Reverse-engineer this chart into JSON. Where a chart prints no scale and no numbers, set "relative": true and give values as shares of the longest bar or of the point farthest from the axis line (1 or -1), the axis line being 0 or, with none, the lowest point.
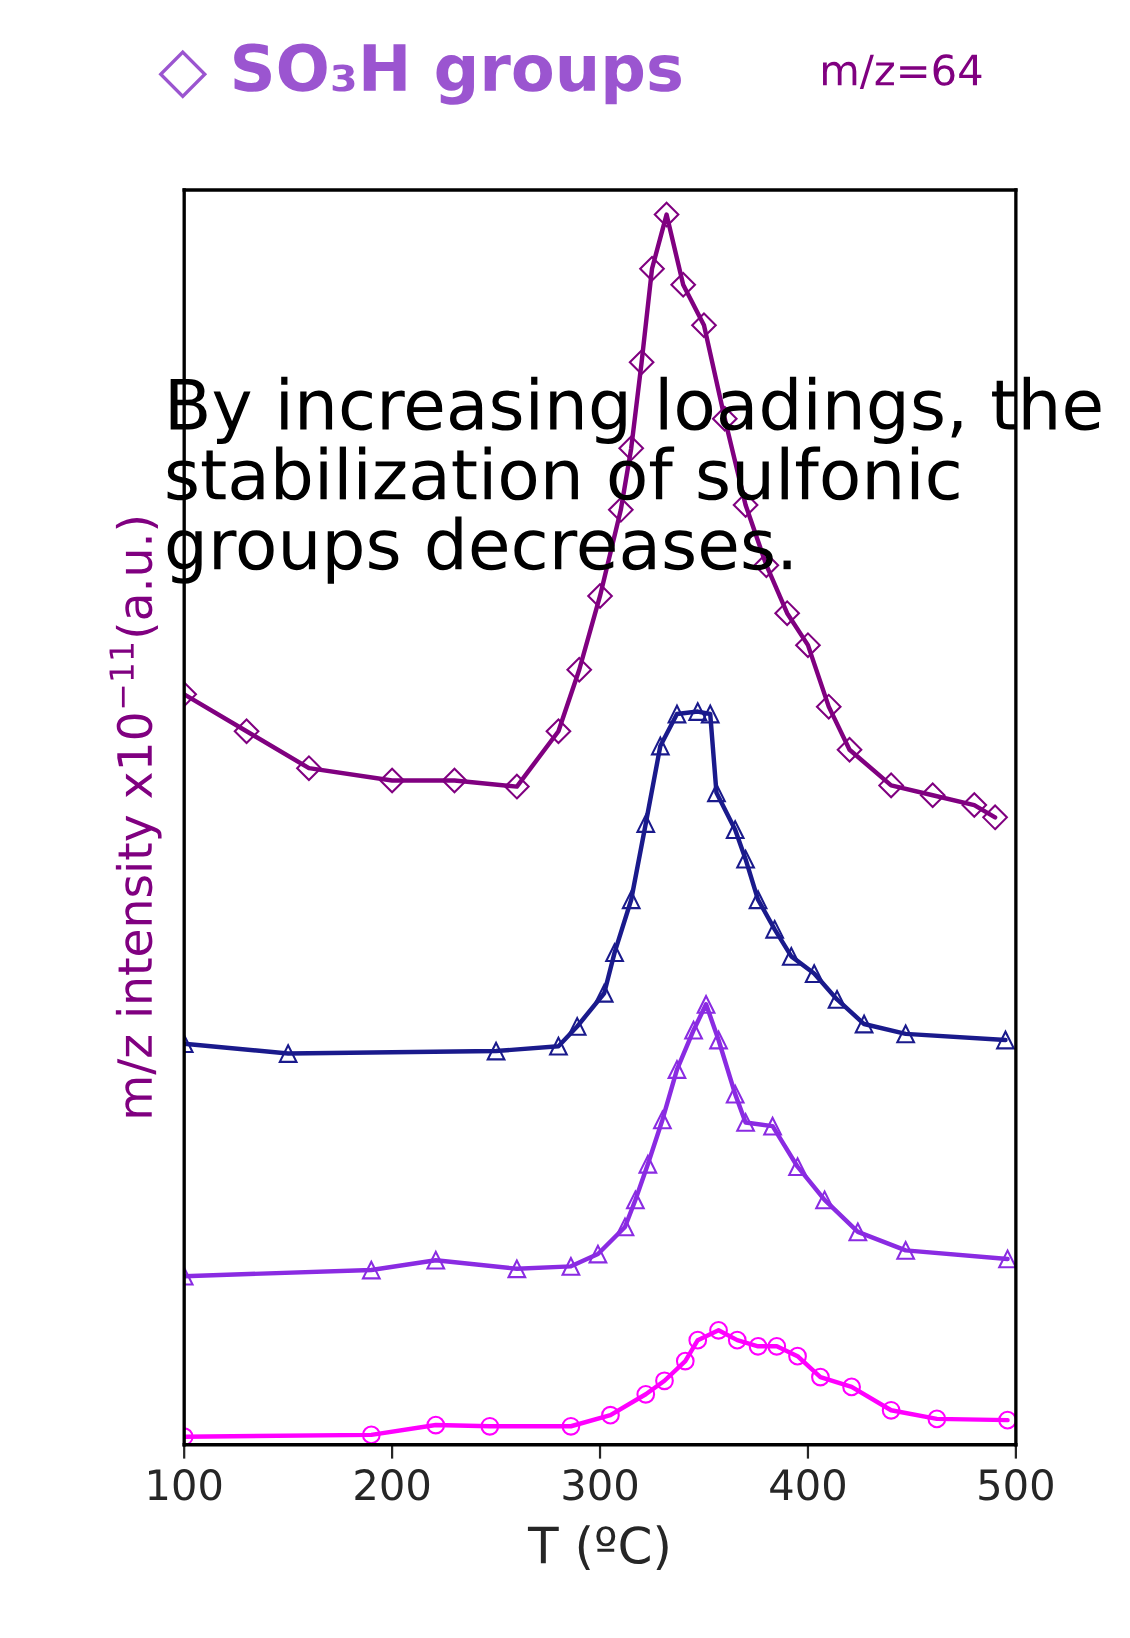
{
  "chart_data": {
    "type": "line",
    "title": "◇ SO₃H groups",
    "subtitle": "m/z=64",
    "xlabel": "T (ºC)",
    "ylabel": "m/z intensity x10$^{−11}$(a.u.)",
    "annotations": [
      "By increasing loadings, the stabilization of sulfonic groups decreases."
    ],
    "relative": true,
    "xlim": [
      100,
      500
    ],
    "xticks": [
      100,
      200,
      300,
      400,
      500
    ],
    "grid": false,
    "line_style": "solid",
    "series": [
      {
        "color": "#800080",
        "marker": "diamond",
        "x": [
          100,
          130,
          160,
          200,
          230,
          260,
          280,
          290,
          300,
          310,
          315,
          320,
          325,
          332,
          340,
          350,
          360,
          370,
          380,
          390,
          400,
          410,
          420,
          440,
          460,
          480,
          490
        ],
        "values": [
          0.61,
          0.58,
          0.55,
          0.54,
          0.54,
          0.535,
          0.58,
          0.63,
          0.69,
          0.76,
          0.81,
          0.88,
          0.956,
          1.0,
          0.943,
          0.91,
          0.834,
          0.764,
          0.715,
          0.676,
          0.65,
          0.6,
          0.565,
          0.536,
          0.528,
          0.52,
          0.51
        ]
      },
      {
        "color": "#1a1a8c",
        "marker": "triangle",
        "x": [
          100,
          150,
          250,
          280,
          289,
          302,
          307,
          315,
          322,
          329,
          337,
          347,
          353,
          356,
          365,
          370,
          376,
          384,
          392,
          403,
          414,
          427,
          447,
          495
        ],
        "values": [
          0.326,
          0.318,
          0.32,
          0.324,
          0.34,
          0.367,
          0.4,
          0.443,
          0.505,
          0.568,
          0.594,
          0.596,
          0.594,
          0.53,
          0.5,
          0.476,
          0.443,
          0.419,
          0.397,
          0.383,
          0.362,
          0.342,
          0.334,
          0.329
        ]
      },
      {
        "color": "#8a2be2",
        "marker": "triangle",
        "x": [
          100,
          190,
          221,
          260,
          286,
          299,
          312,
          317,
          323,
          330,
          337,
          345,
          351,
          357,
          365,
          370,
          383,
          395,
          408,
          424,
          447,
          496
        ],
        "values": [
          0.137,
          0.142,
          0.15,
          0.143,
          0.145,
          0.155,
          0.177,
          0.199,
          0.228,
          0.264,
          0.305,
          0.337,
          0.358,
          0.329,
          0.285,
          0.262,
          0.259,
          0.226,
          0.199,
          0.173,
          0.158,
          0.151
        ]
      },
      {
        "color": "#ff00ff",
        "marker": "circle",
        "x": [
          100,
          190,
          221,
          247,
          286,
          305,
          322,
          331,
          341,
          347,
          357,
          366,
          376,
          385,
          395,
          406,
          421,
          440,
          462,
          496
        ],
        "values": [
          0.0065,
          0.008,
          0.016,
          0.015,
          0.015,
          0.024,
          0.041,
          0.052,
          0.068,
          0.085,
          0.093,
          0.085,
          0.08,
          0.08,
          0.072,
          0.055,
          0.047,
          0.028,
          0.021,
          0.02
        ]
      }
    ]
  }
}
